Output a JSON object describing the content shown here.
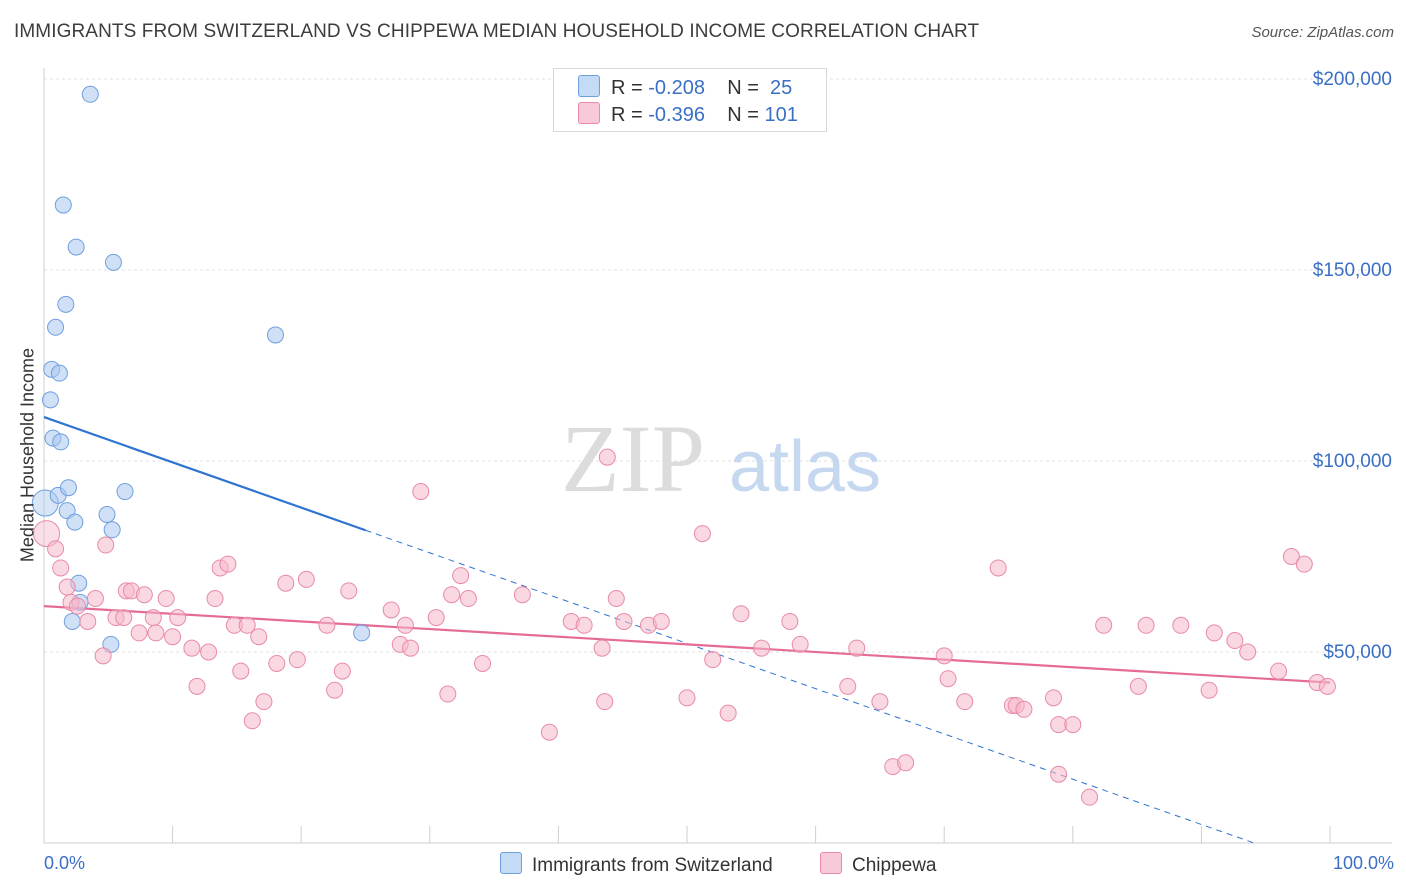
{
  "title": "IMMIGRANTS FROM SWITZERLAND VS CHIPPEWA MEDIAN HOUSEHOLD INCOME CORRELATION CHART",
  "source": "Source: ZipAtlas.com",
  "watermark": {
    "zip": "ZIP",
    "atlas": "atlas"
  },
  "legend": {
    "rows": [
      {
        "r_label": "R =",
        "r_value": "-0.208",
        "n_label": "N =",
        "n_value": "25"
      },
      {
        "r_label": "R =",
        "r_value": "-0.396",
        "n_label": "N =",
        "n_value": "101"
      }
    ]
  },
  "chart_data": {
    "type": "scatter",
    "title": "IMMIGRANTS FROM SWITZERLAND VS CHIPPEWA MEDIAN HOUSEHOLD INCOME CORRELATION CHART",
    "xlabel": "",
    "ylabel": "Median Household Income",
    "xlim": [
      0,
      100
    ],
    "ylim": [
      0,
      210000
    ],
    "x_tick_labels": [
      "0.0%",
      "100.0%"
    ],
    "y_ticks": [
      50000,
      100000,
      150000,
      200000
    ],
    "y_tick_labels": [
      "$50,000",
      "$100,000",
      "$150,000",
      "$200,000"
    ],
    "grid": true,
    "legend_position": "top-center",
    "series": [
      {
        "name": "Immigrants from Switzerland",
        "color": "#a9c8f0",
        "edge": "#6f9fde",
        "line_color": "#2f74d0",
        "trend": {
          "x0": 0,
          "y0": 111500,
          "x1": 100,
          "y1": -7000,
          "solid_until": 25
        },
        "points": [
          [
            0.1,
            89000
          ],
          [
            0.5,
            116000
          ],
          [
            0.6,
            124000
          ],
          [
            0.7,
            106000
          ],
          [
            0.9,
            135000
          ],
          [
            1.1,
            91000
          ],
          [
            1.2,
            123000
          ],
          [
            1.3,
            105000
          ],
          [
            1.5,
            167000
          ],
          [
            1.7,
            141000
          ],
          [
            1.8,
            87000
          ],
          [
            1.9,
            93000
          ],
          [
            2.2,
            58000
          ],
          [
            2.4,
            84000
          ],
          [
            2.5,
            156000
          ],
          [
            2.7,
            68000
          ],
          [
            2.8,
            63000
          ],
          [
            3.6,
            196000
          ],
          [
            4.9,
            86000
          ],
          [
            5.2,
            52000
          ],
          [
            5.3,
            82000
          ],
          [
            5.4,
            152000
          ],
          [
            6.3,
            92000
          ],
          [
            18.0,
            133000
          ],
          [
            24.7,
            55000
          ]
        ]
      },
      {
        "name": "Chippewa",
        "color": "#f5b8cb",
        "edge": "#e88aa8",
        "line_color": "#e56b96",
        "trend": {
          "x0": 0,
          "y0": 62000,
          "x1": 100,
          "y1": 42000,
          "solid_until": 100
        },
        "points": [
          [
            0.2,
            81000
          ],
          [
            0.9,
            77000
          ],
          [
            1.3,
            72000
          ],
          [
            1.8,
            67000
          ],
          [
            2.1,
            63000
          ],
          [
            2.6,
            62000
          ],
          [
            3.4,
            58000
          ],
          [
            4.0,
            64000
          ],
          [
            4.6,
            49000
          ],
          [
            4.8,
            78000
          ],
          [
            5.6,
            59000
          ],
          [
            6.2,
            59000
          ],
          [
            6.4,
            66000
          ],
          [
            6.8,
            66000
          ],
          [
            7.4,
            55000
          ],
          [
            7.8,
            65000
          ],
          [
            8.5,
            59000
          ],
          [
            8.7,
            55000
          ],
          [
            9.5,
            64000
          ],
          [
            10.0,
            54000
          ],
          [
            10.4,
            59000
          ],
          [
            11.5,
            51000
          ],
          [
            11.9,
            41000
          ],
          [
            12.8,
            50000
          ],
          [
            13.3,
            64000
          ],
          [
            13.7,
            72000
          ],
          [
            14.3,
            73000
          ],
          [
            14.8,
            57000
          ],
          [
            15.3,
            45000
          ],
          [
            15.8,
            57000
          ],
          [
            16.2,
            32000
          ],
          [
            16.7,
            54000
          ],
          [
            17.1,
            37000
          ],
          [
            18.1,
            47000
          ],
          [
            18.8,
            68000
          ],
          [
            19.7,
            48000
          ],
          [
            20.4,
            69000
          ],
          [
            22.0,
            57000
          ],
          [
            22.6,
            40000
          ],
          [
            23.2,
            45000
          ],
          [
            23.7,
            66000
          ],
          [
            27.0,
            61000
          ],
          [
            27.7,
            52000
          ],
          [
            28.1,
            57000
          ],
          [
            28.5,
            51000
          ],
          [
            29.3,
            92000
          ],
          [
            30.5,
            59000
          ],
          [
            31.4,
            39000
          ],
          [
            31.7,
            65000
          ],
          [
            32.4,
            70000
          ],
          [
            33.0,
            64000
          ],
          [
            34.1,
            47000
          ],
          [
            37.2,
            65000
          ],
          [
            39.3,
            29000
          ],
          [
            41.0,
            58000
          ],
          [
            42.0,
            57000
          ],
          [
            43.4,
            51000
          ],
          [
            43.6,
            37000
          ],
          [
            43.8,
            101000
          ],
          [
            44.5,
            64000
          ],
          [
            45.1,
            58000
          ],
          [
            47.0,
            57000
          ],
          [
            48.0,
            58000
          ],
          [
            50.0,
            38000
          ],
          [
            51.2,
            81000
          ],
          [
            52.0,
            48000
          ],
          [
            53.2,
            34000
          ],
          [
            54.2,
            60000
          ],
          [
            55.8,
            51000
          ],
          [
            58.0,
            58000
          ],
          [
            58.8,
            52000
          ],
          [
            62.5,
            41000
          ],
          [
            63.2,
            51000
          ],
          [
            65.0,
            37000
          ],
          [
            66.0,
            20000
          ],
          [
            67.0,
            21000
          ],
          [
            70.0,
            49000
          ],
          [
            70.3,
            43000
          ],
          [
            71.6,
            37000
          ],
          [
            74.2,
            72000
          ],
          [
            75.3,
            36000
          ],
          [
            75.6,
            36000
          ],
          [
            76.2,
            35000
          ],
          [
            78.5,
            38000
          ],
          [
            78.9,
            31000
          ],
          [
            78.9,
            18000
          ],
          [
            80.0,
            31000
          ],
          [
            81.3,
            12000
          ],
          [
            82.4,
            57000
          ],
          [
            85.1,
            41000
          ],
          [
            85.7,
            57000
          ],
          [
            88.4,
            57000
          ],
          [
            90.6,
            40000
          ],
          [
            91.0,
            55000
          ],
          [
            92.6,
            53000
          ],
          [
            93.6,
            50000
          ],
          [
            96.0,
            45000
          ],
          [
            97.0,
            75000
          ],
          [
            98.0,
            73000
          ],
          [
            99.0,
            42000
          ],
          [
            99.8,
            41000
          ]
        ]
      }
    ]
  }
}
